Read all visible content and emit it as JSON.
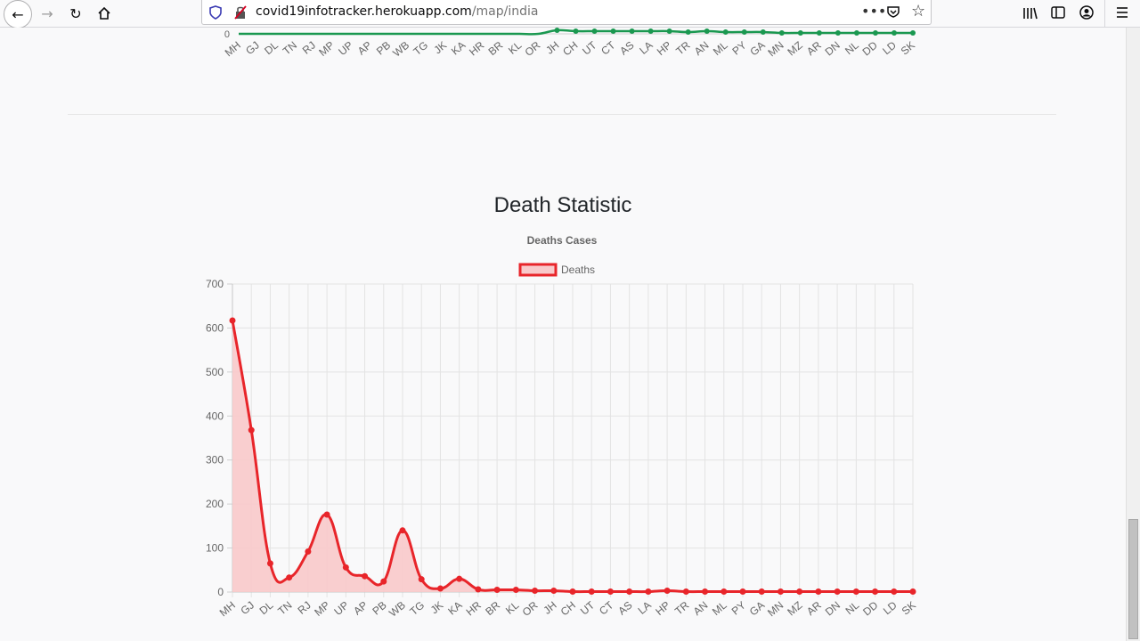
{
  "browser": {
    "url_host": "covid19infotracker.herokuapp.com",
    "url_path": "/map/india"
  },
  "section": {
    "title": "Death Statistic"
  },
  "top_chart": {
    "categories": [
      "MH",
      "GJ",
      "DL",
      "TN",
      "RJ",
      "MP",
      "UP",
      "AP",
      "PB",
      "WB",
      "TG",
      "JK",
      "KA",
      "HR",
      "BR",
      "KL",
      "OR",
      "JH",
      "CH",
      "UT",
      "CT",
      "AS",
      "LA",
      "HP",
      "TR",
      "AN",
      "ML",
      "PY",
      "GA",
      "MN",
      "MZ",
      "AR",
      "DN",
      "NL",
      "DD",
      "LD",
      "SK"
    ],
    "y_tick_visible": "0",
    "color": "#1a9850"
  },
  "chart_data": {
    "type": "line",
    "title": "Deaths Cases",
    "categories": [
      "MH",
      "GJ",
      "DL",
      "TN",
      "RJ",
      "MP",
      "UP",
      "AP",
      "PB",
      "WB",
      "TG",
      "JK",
      "KA",
      "HR",
      "BR",
      "KL",
      "OR",
      "JH",
      "CH",
      "UT",
      "CT",
      "AS",
      "LA",
      "HP",
      "TR",
      "AN",
      "ML",
      "PY",
      "GA",
      "MN",
      "MZ",
      "AR",
      "DN",
      "NL",
      "DD",
      "LD",
      "SK"
    ],
    "series": [
      {
        "name": "Deaths",
        "values": [
          617,
          368,
          65,
          33,
          92,
          176,
          56,
          36,
          24,
          140,
          29,
          8,
          30,
          6,
          5,
          5,
          3,
          3,
          1,
          1,
          1,
          1,
          1,
          3,
          1,
          1,
          1,
          1,
          1,
          1,
          1,
          1,
          1,
          1,
          1,
          1,
          1
        ],
        "color": "#e8252a",
        "fill": "#f8c9ca"
      }
    ],
    "ylim": [
      0,
      700
    ],
    "yticks": [
      0,
      100,
      200,
      300,
      400,
      500,
      600,
      700
    ],
    "legend": "top",
    "grid": true
  }
}
